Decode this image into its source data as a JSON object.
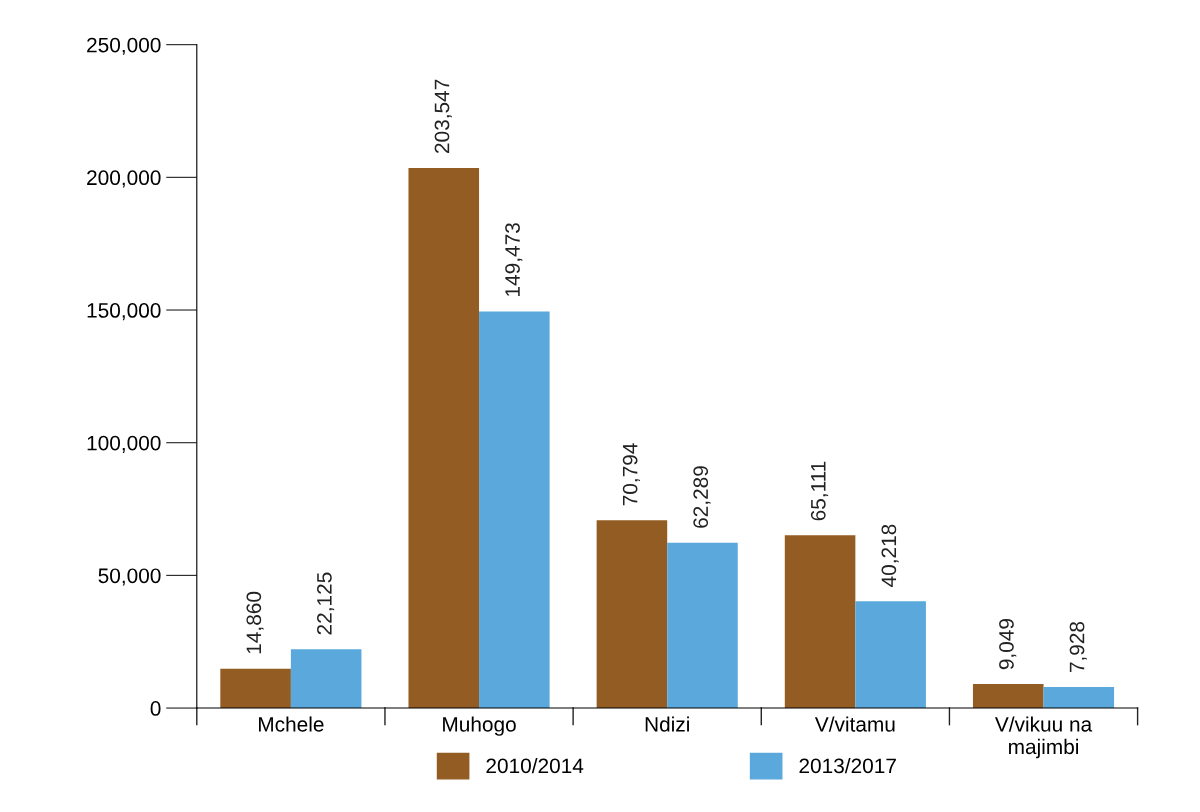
{
  "chart_data": {
    "type": "bar",
    "categories": [
      "Mchele",
      "Muhogo",
      "Ndizi",
      "V/vitamu",
      "V/vikuu na\nmajimbi"
    ],
    "series": [
      {
        "name": "2010/2014",
        "color": "#925c22",
        "values": [
          14860,
          203547,
          70794,
          65111,
          9049
        ],
        "value_labels": [
          "14,860",
          "203,547",
          "70,794",
          "65,111",
          "9,049"
        ]
      },
      {
        "name": "2013/2017",
        "color": "#5aa8dc",
        "values": [
          22125,
          149473,
          62289,
          40218,
          7928
        ],
        "value_labels": [
          "22,125",
          "149,473",
          "62,289",
          "40,218",
          "7,928"
        ]
      }
    ],
    "ylim": [
      0,
      250000
    ],
    "yticks": [
      {
        "value": 0,
        "label": "0"
      },
      {
        "value": 50000,
        "label": "50,000"
      },
      {
        "value": 100000,
        "label": "100,000"
      },
      {
        "value": 150000,
        "label": "150,000"
      },
      {
        "value": 200000,
        "label": "200,000"
      },
      {
        "value": 250000,
        "label": "250,000"
      }
    ],
    "grid": false,
    "legend": "bottom"
  }
}
